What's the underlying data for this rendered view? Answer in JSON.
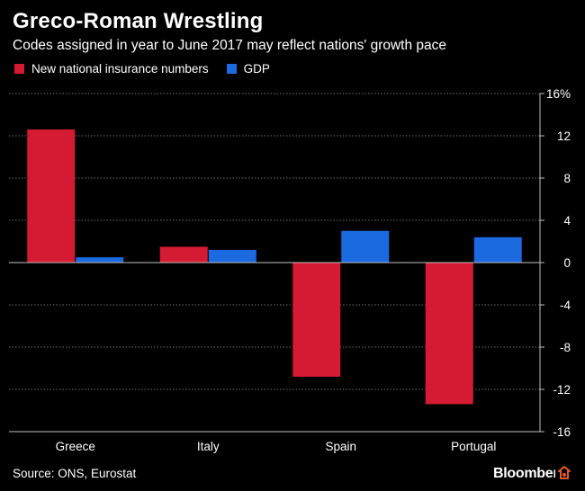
{
  "chart_data": {
    "type": "bar",
    "title": "Greco-Roman Wrestling",
    "subtitle": "Codes assigned in year to June 2017 may reflect nations' growth pace",
    "categories": [
      "Greece",
      "Italy",
      "Spain",
      "Portugal"
    ],
    "series": [
      {
        "name": "New national insurance numbers",
        "color": "#d51b33",
        "values": [
          12.6,
          1.5,
          -10.8,
          -13.4
        ]
      },
      {
        "name": "GDP",
        "color": "#1c6ae0",
        "values": [
          0.5,
          1.2,
          3.0,
          2.4
        ]
      }
    ],
    "ylim": [
      -16,
      16
    ],
    "yticks": [
      16,
      12,
      8,
      4,
      0,
      -4,
      -8,
      -12,
      -16
    ],
    "ytick_labels": [
      "16%",
      "12",
      "8",
      "4",
      "0",
      "-4",
      "-8",
      "-12",
      "-16"
    ],
    "xlabel": "",
    "ylabel": "",
    "grid": true,
    "legend": "top-left"
  },
  "footer": {
    "source": "Source: ONS, Eurostat",
    "brand": "Bloomberg"
  },
  "colors": {
    "background": "#000000",
    "text": "#ffffff",
    "grid": "#6e6e6e",
    "axis": "#bfbfbf"
  }
}
